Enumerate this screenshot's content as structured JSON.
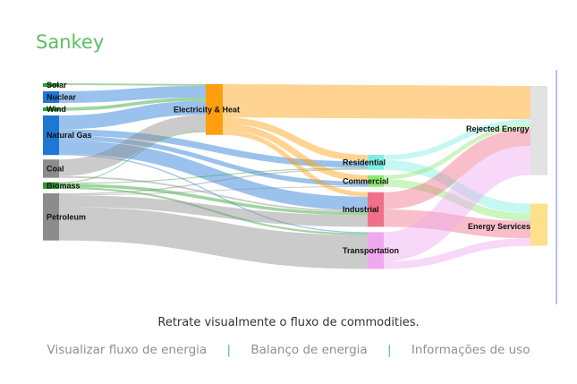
{
  "page": {
    "title": "Sankey"
  },
  "caption": "Retrate visualmente o fluxo de commodities.",
  "nav_links": [
    {
      "label": "Visualizar fluxo de energia"
    },
    {
      "label": "Balanço de energia"
    },
    {
      "label": "Informações de uso"
    }
  ],
  "chart_data": {
    "type": "sankey",
    "nodes": [
      {
        "id": "solar",
        "label": "Solar",
        "color": "#2ca02c"
      },
      {
        "id": "nuclear",
        "label": "Nuclear",
        "color": "#1f77d4"
      },
      {
        "id": "wind",
        "label": "Wind",
        "color": "#2ca02c"
      },
      {
        "id": "natural-gas",
        "label": "Natural Gas",
        "color": "#1f77d4"
      },
      {
        "id": "coal",
        "label": "Coal",
        "color": "#8c8c8c"
      },
      {
        "id": "biomass",
        "label": "Biomass",
        "color": "#2ca02c"
      },
      {
        "id": "petroleum",
        "label": "Petroleum",
        "color": "#8c8c8c"
      },
      {
        "id": "electricity",
        "label": "Electricity & Heat",
        "color": "#ff9f0e"
      },
      {
        "id": "residential",
        "label": "Residential",
        "color": "#7ff0e0"
      },
      {
        "id": "commercial",
        "label": "Commercial",
        "color": "#8fe870"
      },
      {
        "id": "industrial",
        "label": "Industrial",
        "color": "#f0708a"
      },
      {
        "id": "transportation",
        "label": "Transportation",
        "color": "#f0a8f0"
      },
      {
        "id": "rejected",
        "label": "Rejected Energy",
        "color": "#e2e2e2"
      },
      {
        "id": "services",
        "label": "Energy Services",
        "color": "#ffe08a"
      }
    ],
    "links": [
      {
        "source": "solar",
        "target": "electricity",
        "value": 1.2
      },
      {
        "source": "nuclear",
        "target": "electricity",
        "value": 8.4
      },
      {
        "source": "wind",
        "target": "electricity",
        "value": 2.4
      },
      {
        "source": "natural-gas",
        "target": "electricity",
        "value": 10.0
      },
      {
        "source": "natural-gas",
        "target": "residential",
        "value": 4.6
      },
      {
        "source": "natural-gas",
        "target": "commercial",
        "value": 3.3
      },
      {
        "source": "natural-gas",
        "target": "industrial",
        "value": 9.8
      },
      {
        "source": "natural-gas",
        "target": "transportation",
        "value": 0.8
      },
      {
        "source": "coal",
        "target": "electricity",
        "value": 12.0
      },
      {
        "source": "coal",
        "target": "industrial",
        "value": 1.2
      },
      {
        "source": "biomass",
        "target": "electricity",
        "value": 0.5
      },
      {
        "source": "biomass",
        "target": "residential",
        "value": 0.5
      },
      {
        "source": "biomass",
        "target": "industrial",
        "value": 2.3
      },
      {
        "source": "biomass",
        "target": "transportation",
        "value": 1.4
      },
      {
        "source": "petroleum",
        "target": "residential",
        "value": 0.9
      },
      {
        "source": "petroleum",
        "target": "commercial",
        "value": 0.5
      },
      {
        "source": "petroleum",
        "target": "industrial",
        "value": 8.3
      },
      {
        "source": "petroleum",
        "target": "transportation",
        "value": 24.3
      },
      {
        "source": "electricity",
        "target": "rejected",
        "value": 24.0
      },
      {
        "source": "electricity",
        "target": "residential",
        "value": 4.7
      },
      {
        "source": "electricity",
        "target": "commercial",
        "value": 4.6
      },
      {
        "source": "electricity",
        "target": "industrial",
        "value": 3.3
      },
      {
        "source": "residential",
        "target": "rejected",
        "value": 3.8
      },
      {
        "source": "residential",
        "target": "services",
        "value": 7.0
      },
      {
        "source": "commercial",
        "target": "rejected",
        "value": 3.0
      },
      {
        "source": "commercial",
        "target": "services",
        "value": 5.4
      },
      {
        "source": "industrial",
        "target": "rejected",
        "value": 12.4
      },
      {
        "source": "industrial",
        "target": "services",
        "value": 12.5
      },
      {
        "source": "transportation",
        "target": "rejected",
        "value": 21.0
      },
      {
        "source": "transportation",
        "target": "services",
        "value": 5.5
      }
    ]
  }
}
